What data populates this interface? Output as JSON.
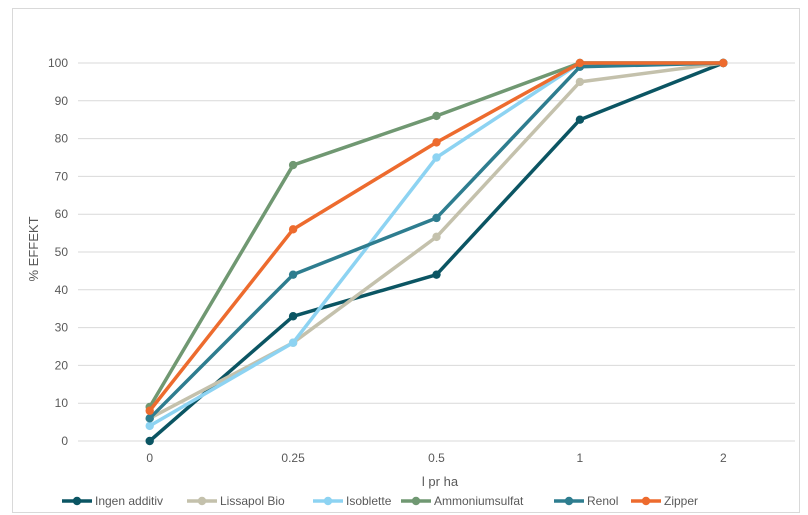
{
  "chart_data": {
    "type": "line",
    "categories": [
      "0",
      "0.25",
      "0.5",
      "1",
      "2"
    ],
    "xlabel": "l pr ha",
    "ylabel": "% EFFEKT",
    "ylim": [
      0,
      100
    ],
    "yticks": [
      "0",
      "10",
      "20",
      "30",
      "40",
      "50",
      "60",
      "70",
      "80",
      "90",
      "100"
    ],
    "grid": true,
    "legend_position": "bottom",
    "series": [
      {
        "name": "Ingen additiv",
        "color": "#0b5563",
        "values": [
          0,
          33,
          44,
          85,
          100
        ]
      },
      {
        "name": "Lissapol Bio",
        "color": "#c4c1ac",
        "values": [
          6,
          26,
          54,
          95,
          100
        ]
      },
      {
        "name": "Isoblette",
        "color": "#8dd3f2",
        "values": [
          4,
          26,
          75,
          100,
          100
        ]
      },
      {
        "name": "Ammoniumsulfat",
        "color": "#709872",
        "values": [
          9,
          73,
          86,
          100,
          100
        ]
      },
      {
        "name": "Renol",
        "color": "#2e7d8f",
        "values": [
          6,
          44,
          59,
          99,
          100
        ]
      },
      {
        "name": "Zipper",
        "color": "#ed6b2e",
        "values": [
          8,
          56,
          79,
          100,
          100
        ]
      }
    ]
  }
}
